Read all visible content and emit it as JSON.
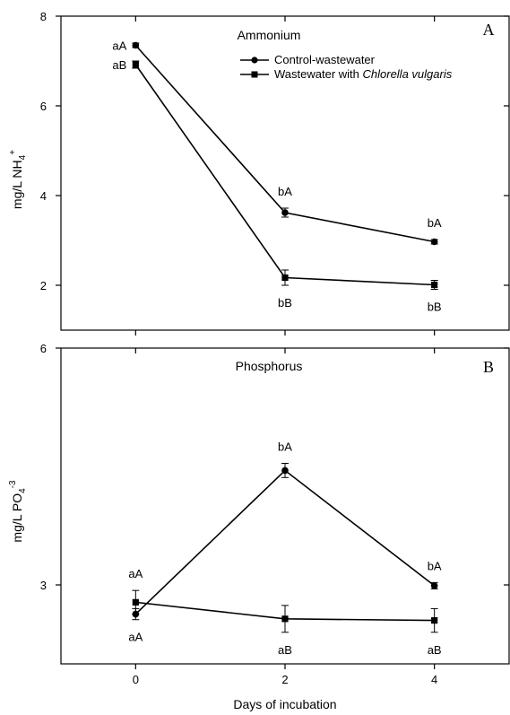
{
  "xlabel": "Days of incubation",
  "chart_data": [
    {
      "type": "line",
      "panel_letter": "A",
      "title": "Ammonium",
      "ylabel_main": "mg/L NH",
      "ylabel_sub": "4",
      "ylabel_sup": "+",
      "xlim": [
        -1,
        5
      ],
      "ylim": [
        1,
        8
      ],
      "x_ticks": [
        0,
        2,
        4
      ],
      "y_ticks": [
        2,
        4,
        6,
        8
      ],
      "legend_position": "top-right",
      "series": [
        {
          "name": "Control-wastewater",
          "marker": "circle",
          "x": [
            0,
            2,
            4
          ],
          "y": [
            7.35,
            3.62,
            2.97
          ],
          "err": [
            0.05,
            0.1,
            0.05
          ],
          "labels": [
            "aA",
            "bA",
            "bA"
          ],
          "label_side": [
            "left",
            "above",
            "above"
          ]
        },
        {
          "name_prefix": "Wastewater with ",
          "name_italic": "Chlorella vulgaris",
          "marker": "square",
          "x": [
            0,
            2,
            4
          ],
          "y": [
            6.92,
            2.17,
            2.01
          ],
          "err": [
            0.08,
            0.17,
            0.1
          ],
          "labels": [
            "aB",
            "bB",
            "bB"
          ],
          "label_side": [
            "left",
            "below",
            "below"
          ]
        }
      ]
    },
    {
      "type": "line",
      "panel_letter": "B",
      "title": "Phosphorus",
      "ylabel_main": "mg/L PO",
      "ylabel_sub": "4",
      "ylabel_sup": "-3",
      "xlim": [
        -1,
        5
      ],
      "ylim": [
        2,
        6
      ],
      "x_ticks": [
        0,
        2,
        4
      ],
      "y_ticks": [
        3,
        6
      ],
      "series": [
        {
          "name": "Control-wastewater",
          "marker": "circle",
          "x": [
            0,
            2,
            4
          ],
          "y": [
            2.63,
            4.45,
            2.99
          ],
          "err": [
            0.07,
            0.09,
            0.04
          ],
          "labels": [
            "aA",
            "bA",
            "bA"
          ],
          "label_side": [
            "below",
            "above",
            "above"
          ]
        },
        {
          "name": "Wastewater with Chlorella vulgaris",
          "marker": "square",
          "x": [
            0,
            2,
            4
          ],
          "y": [
            2.78,
            2.57,
            2.55
          ],
          "err": [
            0.15,
            0.17,
            0.15
          ],
          "labels": [
            "aA",
            "aB",
            "aB"
          ],
          "label_side": [
            "above",
            "below",
            "below"
          ]
        }
      ]
    }
  ]
}
